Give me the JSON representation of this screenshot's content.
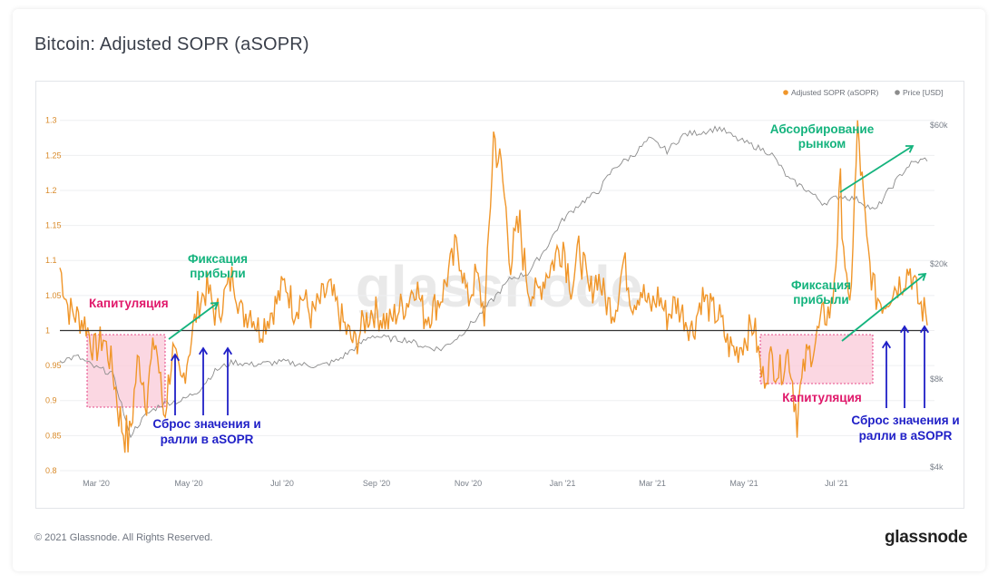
{
  "title": "Bitcoin: Adjusted SOPR (aSOPR)",
  "footer": {
    "copyright": "© 2021 Glassnode. All Rights Reserved.",
    "logo": "glassnode"
  },
  "watermark": "glassnode",
  "colors": {
    "asopr": "#f0962a",
    "price": "#8c8c8c",
    "baseline": "#333333",
    "capitulation_fill": "#f9c9d8",
    "capitulation_border": "#e0186a",
    "green": "#14b37d",
    "pink": "#e0186a",
    "blue": "#1f1fc7"
  },
  "chart_data": {
    "type": "line",
    "title": "Bitcoin: Adjusted SOPR (aSOPR)",
    "x_range": [
      "2020-02-15",
      "2021-08-28"
    ],
    "x_ticks": [
      "Mar '20",
      "May '20",
      "Jul '20",
      "Sep '20",
      "Nov '20",
      "Jan '21",
      "Mar '21",
      "May '21",
      "Jul '21"
    ],
    "y_left": {
      "label": "Adjusted SOPR (aSOPR)",
      "range": [
        0.8,
        1.31
      ],
      "ticks": [
        0.8,
        0.85,
        0.9,
        0.95,
        1,
        1.05,
        1.1,
        1.15,
        1.2,
        1.25,
        1.3
      ]
    },
    "y_right": {
      "label": "Price [USD]",
      "scale": "log",
      "ticks": [
        "$4k",
        "$8k",
        "$20k",
        "$60k"
      ]
    },
    "legend": [
      {
        "name": "Adjusted SOPR (aSOPR)",
        "color": "#f0962a"
      },
      {
        "name": "Price [USD]",
        "color": "#8c8c8c"
      }
    ],
    "legend_position": "top-right",
    "baseline": 1,
    "series": [
      {
        "name": "Adjusted SOPR (aSOPR)",
        "axis": "left",
        "x": [
          0,
          0.01,
          0.02,
          0.03,
          0.04,
          0.05,
          0.06,
          0.07,
          0.08,
          0.09,
          0.1,
          0.11,
          0.12,
          0.13,
          0.14,
          0.15,
          0.16,
          0.17,
          0.18,
          0.19,
          0.2,
          0.21,
          0.22,
          0.23,
          0.24,
          0.25,
          0.26,
          0.27,
          0.28,
          0.29,
          0.3,
          0.31,
          0.32,
          0.33,
          0.34,
          0.35,
          0.36,
          0.37,
          0.38,
          0.39,
          0.4,
          0.41,
          0.42,
          0.43,
          0.44,
          0.45,
          0.46,
          0.47,
          0.48,
          0.49,
          0.5,
          0.51,
          0.52,
          0.53,
          0.54,
          0.55,
          0.56,
          0.57,
          0.58,
          0.59,
          0.6,
          0.61,
          0.62,
          0.63,
          0.64,
          0.65,
          0.66,
          0.67,
          0.68,
          0.69,
          0.7,
          0.71,
          0.72,
          0.73,
          0.74,
          0.75,
          0.76,
          0.77,
          0.78,
          0.79,
          0.8,
          0.81,
          0.82,
          0.83,
          0.84,
          0.85,
          0.86,
          0.87,
          0.88,
          0.89,
          0.9,
          0.91,
          0.92,
          0.93,
          0.94,
          0.95,
          0.96,
          0.97,
          0.98,
          0.99,
          1.0
        ],
        "values": [
          1.09,
          1.03,
          1.02,
          1.01,
          0.97,
          0.99,
          0.95,
          0.87,
          0.84,
          0.96,
          0.91,
          0.99,
          0.88,
          0.97,
          0.92,
          0.98,
          1.04,
          1.06,
          1.02,
          1.05,
          1.08,
          1.02,
          1.03,
          1.0,
          1.02,
          1.04,
          1.07,
          1.03,
          1.05,
          1.02,
          1.04,
          1.06,
          1.03,
          1.0,
          0.98,
          1.01,
          1.03,
          1.02,
          1.01,
          1.03,
          1.04,
          1.07,
          1.02,
          1.03,
          1.05,
          1.09,
          1.12,
          1.04,
          1.08,
          1.02,
          1.28,
          1.22,
          1.1,
          1.15,
          1.06,
          1.05,
          1.08,
          1.1,
          1.13,
          1.06,
          1.12,
          1.05,
          1.08,
          1.04,
          1.03,
          1.1,
          1.04,
          1.06,
          1.03,
          1.05,
          1.02,
          1.04,
          1.02,
          1.0,
          1.05,
          1.03,
          1.02,
          0.98,
          0.97,
          0.99,
          1.01,
          0.93,
          0.96,
          0.94,
          0.97,
          0.88,
          0.96,
          0.98,
          1.02,
          1.03,
          1.2,
          1.01,
          1.29,
          1.12,
          1.05,
          1.04,
          1.06,
          1.07,
          1.09,
          1.04,
          1.02
        ]
      },
      {
        "name": "Price [USD]",
        "axis": "right",
        "x": [
          0,
          0.02,
          0.04,
          0.06,
          0.08,
          0.1,
          0.12,
          0.14,
          0.16,
          0.18,
          0.2,
          0.22,
          0.24,
          0.26,
          0.28,
          0.3,
          0.32,
          0.34,
          0.36,
          0.38,
          0.4,
          0.42,
          0.44,
          0.46,
          0.48,
          0.5,
          0.52,
          0.54,
          0.56,
          0.58,
          0.6,
          0.62,
          0.64,
          0.66,
          0.68,
          0.7,
          0.72,
          0.74,
          0.76,
          0.78,
          0.8,
          0.82,
          0.84,
          0.86,
          0.88,
          0.9,
          0.92,
          0.94,
          0.96,
          0.98,
          1.0
        ],
        "values": [
          9500,
          9800,
          9000,
          8600,
          5200,
          6200,
          6800,
          6900,
          7500,
          8800,
          9400,
          9200,
          9300,
          9400,
          9200,
          9100,
          9500,
          10500,
          11600,
          11300,
          11200,
          10600,
          10400,
          11500,
          13200,
          15500,
          18200,
          19000,
          23000,
          29000,
          33000,
          36000,
          44000,
          48000,
          55000,
          50000,
          57000,
          58000,
          60000,
          55000,
          52000,
          49000,
          40000,
          37000,
          33000,
          35000,
          34000,
          31000,
          38000,
          45000,
          47000
        ]
      }
    ],
    "annotations": [
      {
        "text": "Капитуляция",
        "type": "capitulation",
        "period": "Mar '20 – May '20"
      },
      {
        "text": "Фиксация прибыли",
        "type": "profit",
        "period": "May '20"
      },
      {
        "text": "Сброс значения и ралли в aSOPR",
        "type": "reset",
        "period": "May '20 – Jun '20"
      },
      {
        "text": "Абсорбирование рынком",
        "type": "absorption",
        "period": "Jul '21 – Aug '21"
      },
      {
        "text": "Фиксация прибыли",
        "type": "profit",
        "period": "Jul '21 – Aug '21"
      },
      {
        "text": "Капитуляция",
        "type": "capitulation",
        "period": "May '21 – Jul '21"
      },
      {
        "text": "Сброс значения и ралли в aSOPR",
        "type": "reset",
        "period": "Jul '21 – Aug '21"
      }
    ]
  },
  "labels": {
    "capitulation_left": "Капитуляция",
    "profit_left_1": "Фиксация",
    "profit_left_2": "прибыли",
    "reset_left_1": "Сброс значения и",
    "reset_left_2": "ралли в aSOPR",
    "absorb_1": "Абсорбирование",
    "absorb_2": "рынком",
    "profit_right_1": "Фиксация",
    "profit_right_2": "прибыли",
    "capitulation_right": "Капитуляция",
    "reset_right_1": "Сброс значения и",
    "reset_right_2": "ралли в aSOPR"
  }
}
